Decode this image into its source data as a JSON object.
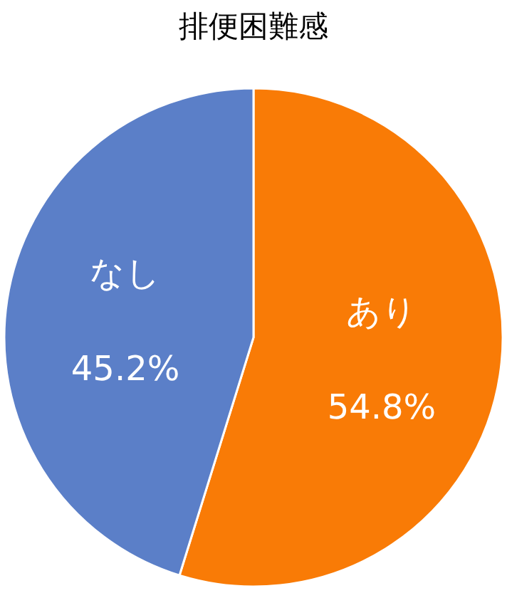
{
  "chart_data": {
    "type": "pie",
    "title": "排便困難感",
    "categories": [
      "あり",
      "なし"
    ],
    "values": [
      54.8,
      45.2
    ],
    "value_labels": [
      "54.8%",
      "45.2%"
    ],
    "colors": [
      "#f97b06",
      "#5b7fc8"
    ]
  }
}
